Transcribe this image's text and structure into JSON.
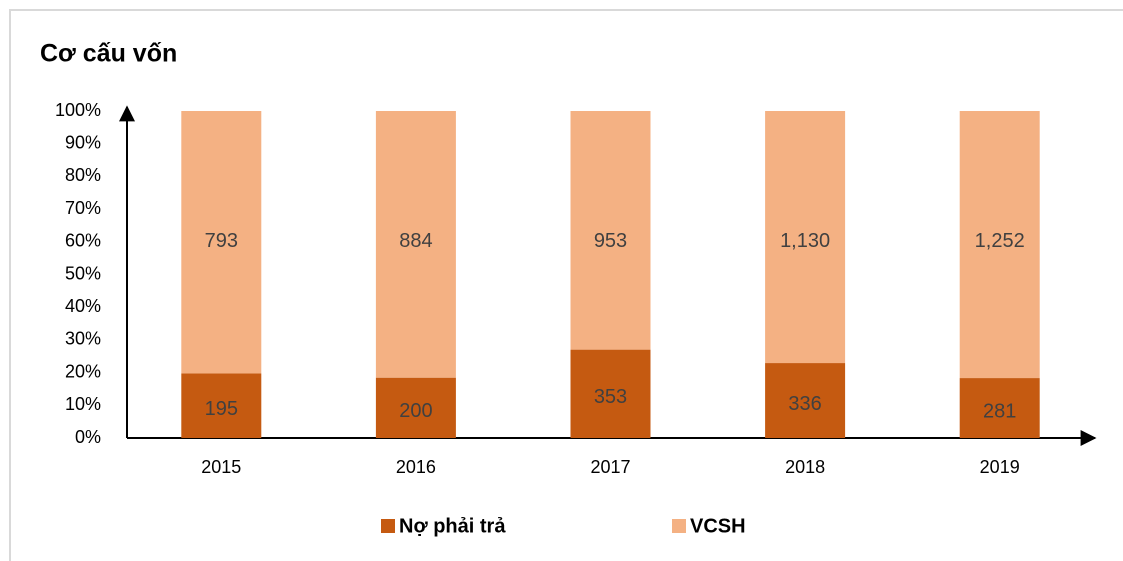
{
  "chart_data": {
    "type": "bar",
    "stack": "percent",
    "title": "Cơ cấu vốn",
    "categories": [
      "2015",
      "2016",
      "2017",
      "2018",
      "2019"
    ],
    "series": [
      {
        "name": "Nợ phải trả",
        "color": "#c55a11",
        "values": [
          195,
          200,
          353,
          336,
          281
        ],
        "value_labels": [
          "195",
          "200",
          "353",
          "336",
          "281"
        ]
      },
      {
        "name": "VCSH",
        "color": "#f4b183",
        "values": [
          793,
          884,
          953,
          1130,
          1252
        ],
        "value_labels": [
          "793",
          "884",
          "953",
          "1,130",
          "1,252"
        ]
      }
    ],
    "ylim": [
      0,
      100
    ],
    "yticks": [
      {
        "value": 0,
        "label": "0%"
      },
      {
        "value": 10,
        "label": "10%"
      },
      {
        "value": 20,
        "label": "20%"
      },
      {
        "value": 30,
        "label": "30%"
      },
      {
        "value": 40,
        "label": "40%"
      },
      {
        "value": 50,
        "label": "50%"
      },
      {
        "value": 60,
        "label": "60%"
      },
      {
        "value": 70,
        "label": "70%"
      },
      {
        "value": 80,
        "label": "80%"
      },
      {
        "value": 90,
        "label": "90%"
      },
      {
        "value": 100,
        "label": "100%"
      }
    ],
    "legend": "bottom"
  }
}
